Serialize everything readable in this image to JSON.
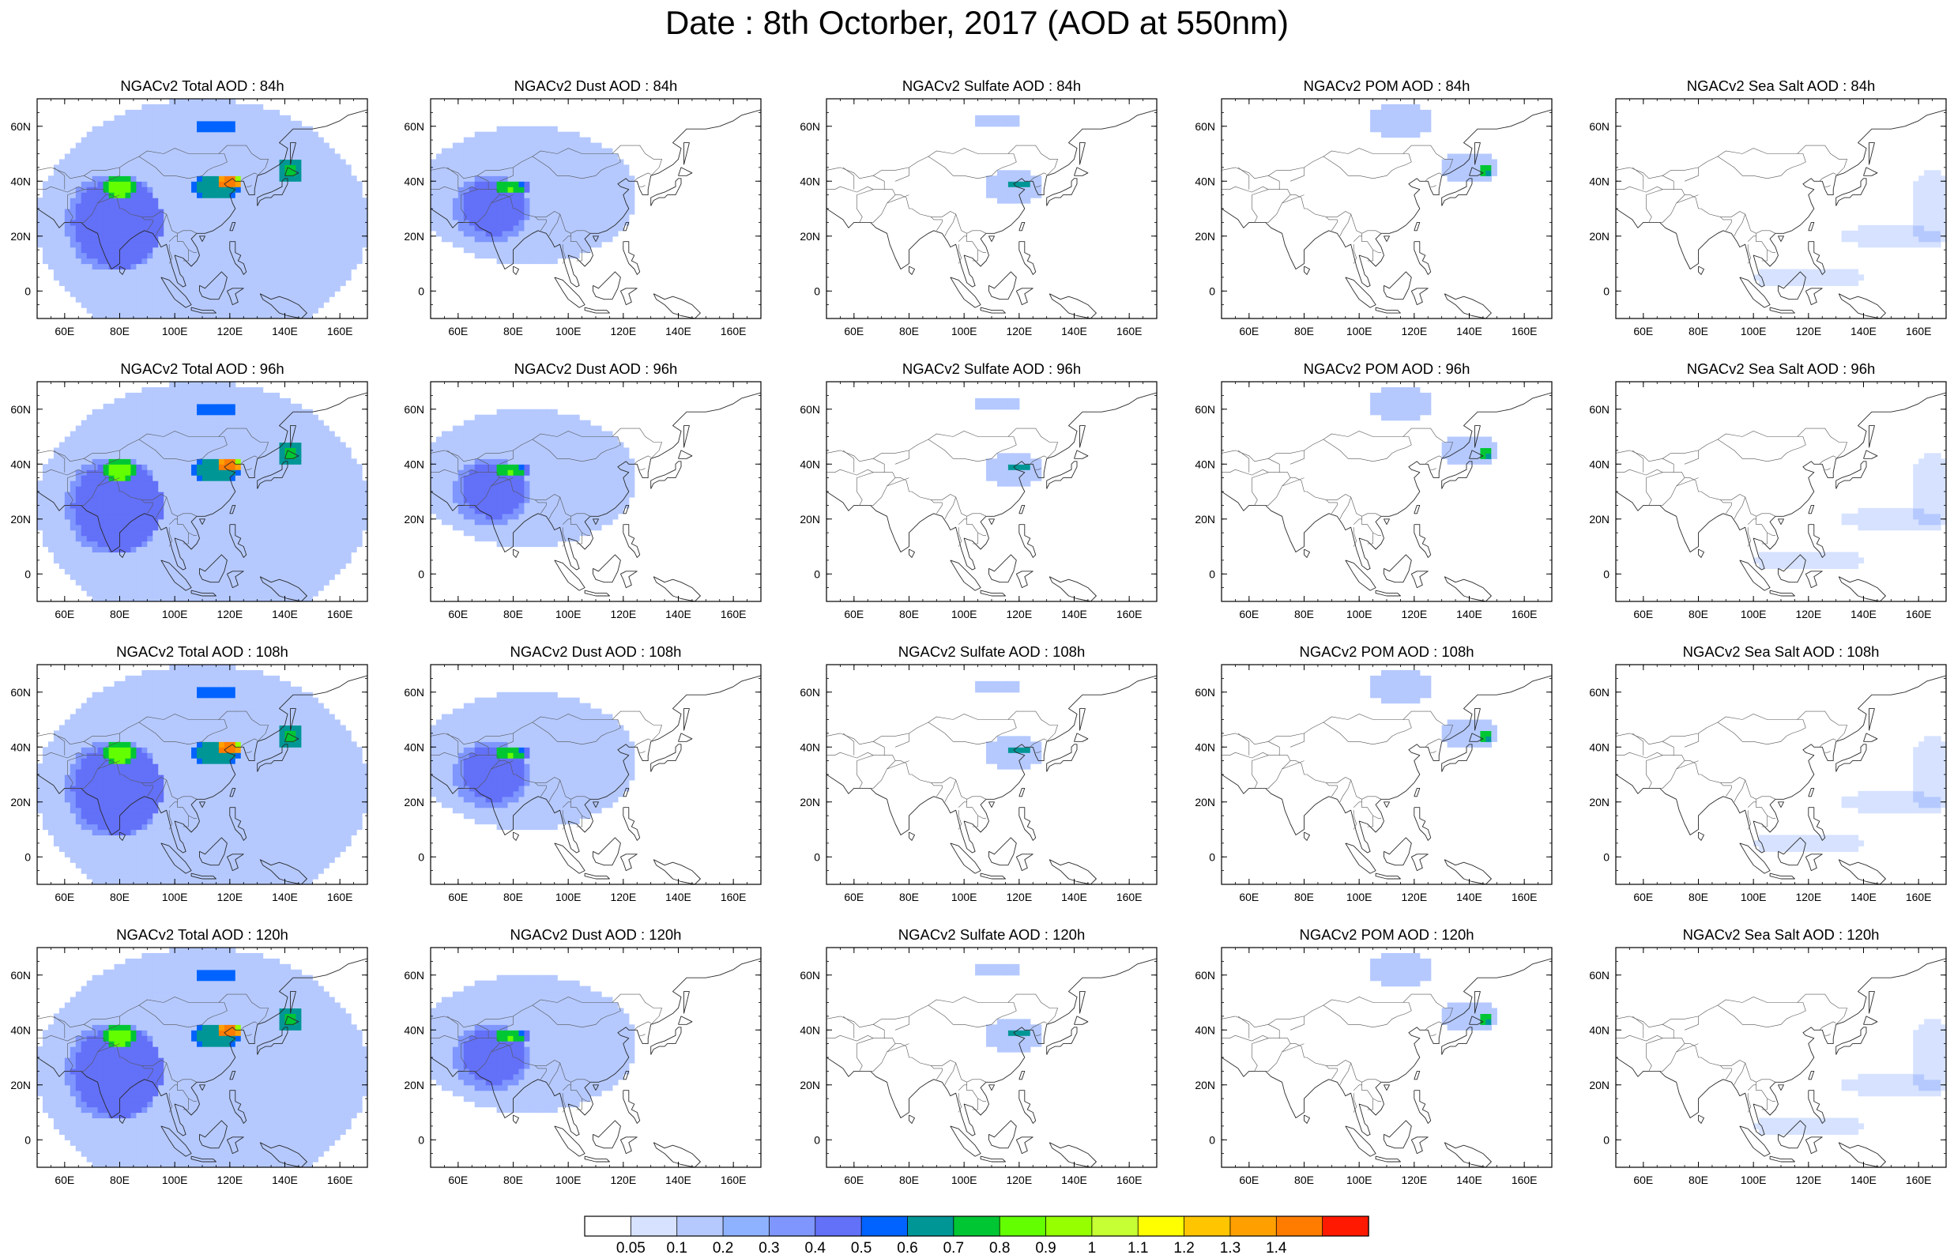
{
  "title": "Date : 8th Octorber, 2017 (AOD at 550nm)",
  "map_extent": {
    "lon_min": 50,
    "lon_max": 170,
    "lat_min": -10,
    "lat_max": 70
  },
  "axis_ticks": {
    "x": [
      {
        "lon": 60,
        "label": "60E"
      },
      {
        "lon": 80,
        "label": "80E"
      },
      {
        "lon": 100,
        "label": "100E"
      },
      {
        "lon": 120,
        "label": "120E"
      },
      {
        "lon": 140,
        "label": "140E"
      },
      {
        "lon": 160,
        "label": "160E"
      }
    ],
    "y": [
      {
        "lat": 60,
        "label": "60N"
      },
      {
        "lat": 40,
        "label": "40N"
      },
      {
        "lat": 20,
        "label": "20N"
      },
      {
        "lat": 0,
        "label": "0"
      }
    ]
  },
  "panels": [
    {
      "title": "NGACv2 Total AOD : 84h",
      "species": "total",
      "lead_hours": 84
    },
    {
      "title": "NGACv2 Dust AOD : 84h",
      "species": "dust",
      "lead_hours": 84
    },
    {
      "title": "NGACv2 Sulfate AOD : 84h",
      "species": "sulfate",
      "lead_hours": 84
    },
    {
      "title": "NGACv2 POM AOD : 84h",
      "species": "pom",
      "lead_hours": 84
    },
    {
      "title": "NGACv2 Sea Salt AOD : 84h",
      "species": "seasalt",
      "lead_hours": 84
    },
    {
      "title": "NGACv2 Total AOD : 96h",
      "species": "total",
      "lead_hours": 96
    },
    {
      "title": "NGACv2 Dust AOD : 96h",
      "species": "dust",
      "lead_hours": 96
    },
    {
      "title": "NGACv2 Sulfate AOD : 96h",
      "species": "sulfate",
      "lead_hours": 96
    },
    {
      "title": "NGACv2 POM AOD : 96h",
      "species": "pom",
      "lead_hours": 96
    },
    {
      "title": "NGACv2 Sea Salt AOD : 96h",
      "species": "seasalt",
      "lead_hours": 96
    },
    {
      "title": "NGACv2 Total AOD : 108h",
      "species": "total",
      "lead_hours": 108
    },
    {
      "title": "NGACv2 Dust AOD : 108h",
      "species": "dust",
      "lead_hours": 108
    },
    {
      "title": "NGACv2 Sulfate AOD : 108h",
      "species": "sulfate",
      "lead_hours": 108
    },
    {
      "title": "NGACv2 POM AOD : 108h",
      "species": "pom",
      "lead_hours": 108
    },
    {
      "title": "NGACv2 Sea Salt AOD : 108h",
      "species": "seasalt",
      "lead_hours": 108
    },
    {
      "title": "NGACv2 Total AOD : 120h",
      "species": "total",
      "lead_hours": 120
    },
    {
      "title": "NGACv2 Dust AOD : 120h",
      "species": "dust",
      "lead_hours": 120
    },
    {
      "title": "NGACv2 Sulfate AOD : 120h",
      "species": "sulfate",
      "lead_hours": 120
    },
    {
      "title": "NGACv2 POM AOD : 120h",
      "species": "pom",
      "lead_hours": 120
    },
    {
      "title": "NGACv2 Sea Salt  AOD : 120h",
      "species": "seasalt",
      "lead_hours": 120
    }
  ],
  "aod_fields": {
    "total": [
      {
        "lon": 110,
        "lat": 25,
        "rx": 60,
        "ry": 45,
        "v": 0.18
      },
      {
        "lon": 78,
        "lat": 25,
        "rx": 18,
        "ry": 18,
        "v": 0.3
      },
      {
        "lon": 80,
        "lat": 38,
        "rx": 6,
        "ry": 4,
        "v": 0.42
      },
      {
        "lon": 115,
        "lat": 38,
        "rx": 10,
        "ry": 5,
        "v": 0.5
      },
      {
        "lon": 120,
        "lat": 40,
        "rx": 4,
        "ry": 3,
        "v": 0.9
      },
      {
        "lon": 115,
        "lat": 60,
        "rx": 8,
        "ry": 3,
        "v": 0.45
      },
      {
        "lon": 142,
        "lat": 44,
        "rx": 5,
        "ry": 4,
        "v": 0.6
      }
    ],
    "dust": [
      {
        "lon": 85,
        "lat": 35,
        "rx": 40,
        "ry": 25,
        "v": 0.18
      },
      {
        "lon": 72,
        "lat": 30,
        "rx": 14,
        "ry": 12,
        "v": 0.28
      },
      {
        "lon": 80,
        "lat": 38,
        "rx": 6,
        "ry": 3,
        "v": 0.4
      }
    ],
    "sulfate": [
      {
        "lon": 118,
        "lat": 38,
        "rx": 10,
        "ry": 7,
        "v": 0.2
      },
      {
        "lon": 120,
        "lat": 39,
        "rx": 4,
        "ry": 2,
        "v": 0.5
      },
      {
        "lon": 112,
        "lat": 62,
        "rx": 8,
        "ry": 3,
        "v": 0.15
      }
    ],
    "pom": [
      {
        "lon": 115,
        "lat": 62,
        "rx": 12,
        "ry": 6,
        "v": 0.2
      },
      {
        "lon": 140,
        "lat": 45,
        "rx": 10,
        "ry": 6,
        "v": 0.2
      },
      {
        "lon": 146,
        "lat": 44,
        "rx": 2,
        "ry": 2,
        "v": 0.6
      }
    ],
    "seasalt": [
      {
        "lon": 150,
        "lat": 20,
        "rx": 18,
        "ry": 4,
        "v": 0.1
      },
      {
        "lon": 120,
        "lat": 5,
        "rx": 20,
        "ry": 4,
        "v": 0.1
      },
      {
        "lon": 165,
        "lat": 30,
        "rx": 8,
        "ry": 15,
        "v": 0.1
      }
    ]
  },
  "colorbar": {
    "colors": [
      "#ffffff",
      "#d6e2ff",
      "#b5c9ff",
      "#8eb2ff",
      "#7f96ff",
      "#6370f8",
      "#0063ff",
      "#009696",
      "#00c633",
      "#63ff00",
      "#96ff00",
      "#c6ff33",
      "#ffff00",
      "#ffc600",
      "#ffa000",
      "#ff7c00",
      "#ff1900"
    ],
    "labels": [
      "0.05",
      "0.1",
      "0.2",
      "0.3",
      "0.4",
      "0.5",
      "0.6",
      "0.7",
      "0.8",
      "0.9",
      "1",
      "1.1",
      "1.2",
      "1.3",
      "1.4"
    ]
  }
}
